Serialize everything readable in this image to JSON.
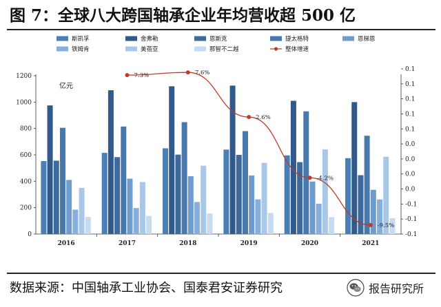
{
  "figure": {
    "title": "图 7：全球八大跨国轴承企业年均营收超 500 亿",
    "source": "数据来源：中国轴承工业协会、国泰君安证券研究",
    "watermark_text": "报告研究所",
    "watermark_icon": "wechat-icon"
  },
  "chart_data": {
    "type": "bar",
    "categories": [
      "2016",
      "2017",
      "2018",
      "2019",
      "2020",
      "2021"
    ],
    "unit_label": "亿元",
    "ylim": [
      0,
      1200
    ],
    "yticks": [
      "0",
      "200",
      "400",
      "600",
      "800",
      "1000",
      "1200"
    ],
    "y2ticks": [
      "-0.1",
      "-0.1",
      "-0.1",
      "0.0",
      "0.0",
      "0.0",
      "0.0",
      "0.1",
      "0.1",
      "0.1",
      "0.1",
      "0.1"
    ],
    "series": [
      {
        "name": "斯凯孚",
        "color": "#4a7fb5",
        "values": [
          553,
          615,
          650,
          640,
          596,
          575
        ]
      },
      {
        "name": "舍弗勒",
        "color": "#2f5a8a",
        "values": [
          975,
          1090,
          1120,
          1125,
          1010,
          1000
        ]
      },
      {
        "name": "恩斯克",
        "color": "#3c6a9c",
        "values": [
          556,
          583,
          602,
          600,
          545,
          446
        ]
      },
      {
        "name": "捷太格特",
        "color": "#4978ab",
        "values": [
          805,
          815,
          848,
          780,
          930,
          745
        ]
      },
      {
        "name": "恩梯恩",
        "color": "#6f9ccc",
        "values": [
          410,
          420,
          438,
          444,
          398,
          335
        ]
      },
      {
        "name": "铁姆肯",
        "color": "#86b0db",
        "values": [
          185,
          197,
          243,
          263,
          230,
          262
        ]
      },
      {
        "name": "美蓓亚",
        "color": "#a9c8e8",
        "values": [
          350,
          394,
          518,
          540,
          642,
          586
        ]
      },
      {
        "name": "那智不二越",
        "color": "#c6dbef",
        "values": [
          130,
          137,
          156,
          160,
          128,
          120
        ]
      }
    ],
    "line": {
      "name": "整体增速",
      "color": "#c0392b",
      "values": [
        7.3,
        7.6,
        2.6,
        -4.2,
        -9.5
      ],
      "labels": [
        "7.3%",
        "7.6%",
        "2.6%",
        "-4.2%",
        "-9.5%"
      ],
      "x_categories": [
        "2017",
        "2018",
        "2019",
        "2020",
        "2021"
      ]
    },
    "legend_position": "top"
  }
}
